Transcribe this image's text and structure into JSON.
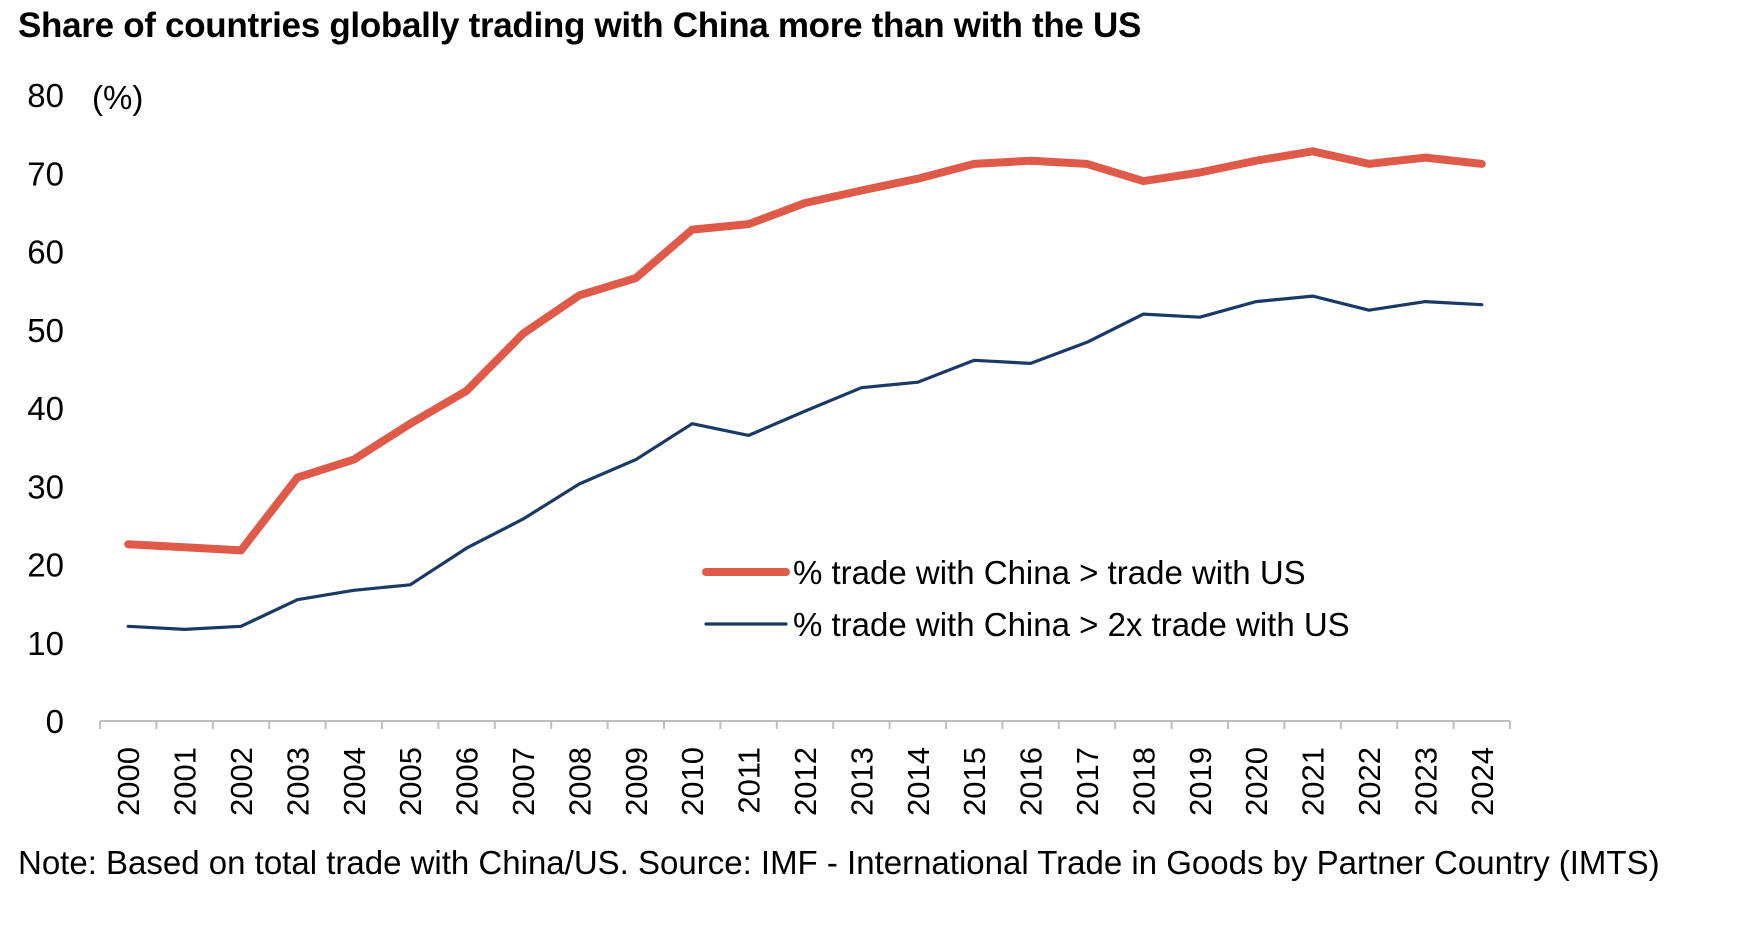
{
  "chart_data": {
    "type": "line",
    "title": "Share of countries globally trading with China more than with the US",
    "unit_label": "(%)",
    "x": [
      "2000",
      "2001",
      "2002",
      "2003",
      "2004",
      "2005",
      "2006",
      "2007",
      "2008",
      "2009",
      "2010",
      "2011",
      "2012",
      "2013",
      "2014",
      "2015",
      "2016",
      "2017",
      "2018",
      "2019",
      "2020",
      "2021",
      "2022",
      "2023",
      "2024"
    ],
    "ylim": [
      0,
      80
    ],
    "yticks": [
      0,
      10,
      20,
      30,
      40,
      50,
      60,
      70,
      80
    ],
    "grid": false,
    "legend_position": "center-right",
    "series": [
      {
        "name": "% trade with China > trade with US",
        "color": "#E05A4A",
        "values": [
          22.6,
          22.2,
          21.8,
          31.1,
          33.4,
          38.0,
          42.2,
          49.5,
          54.4,
          56.6,
          62.8,
          63.5,
          66.2,
          67.8,
          69.3,
          71.2,
          71.6,
          71.2,
          69.0,
          70.1,
          71.6,
          72.8,
          71.2,
          72.0,
          71.2
        ]
      },
      {
        "name": "% trade with China > 2x trade with US",
        "color": "#1B3A63",
        "values": [
          12.1,
          11.7,
          12.1,
          15.5,
          16.7,
          17.4,
          22.1,
          25.8,
          30.3,
          33.4,
          38.0,
          36.5,
          39.6,
          42.6,
          43.3,
          46.1,
          45.7,
          48.4,
          52.0,
          51.6,
          53.6,
          54.3,
          52.5,
          53.6,
          53.2
        ]
      }
    ]
  },
  "note": "Note: Based on total trade with China/US. Source: IMF - International Trade in Goods by Partner Country (IMTS)"
}
